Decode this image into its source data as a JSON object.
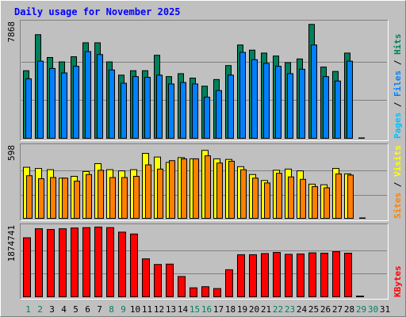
{
  "title": "Daily usage for November 2025",
  "colors": {
    "background": "#c0c0c0",
    "title": "#0000ff",
    "hits": "#00805c",
    "files": "#0080ff",
    "pages": "#00c0ff",
    "visits": "#ffff00",
    "sites": "#ff8000",
    "kbytes": "#ff0000",
    "weekday_label": "#000000",
    "weekend_label": "#00805c",
    "grid": "#808080"
  },
  "chart_data": [
    {
      "type": "bar",
      "panel": "hits-files-pages",
      "categories": [
        "1",
        "2",
        "3",
        "4",
        "5",
        "6",
        "7",
        "8",
        "9",
        "10",
        "11",
        "12",
        "13",
        "14",
        "15",
        "16",
        "17",
        "18",
        "19",
        "20",
        "21",
        "22",
        "23",
        "24",
        "25",
        "26",
        "27",
        "28",
        "29",
        "30",
        "31"
      ],
      "ymax_label": "7868",
      "ylim": [
        0,
        7868
      ],
      "right_labels": [
        {
          "text": "Pages",
          "color": "#00c0ff"
        },
        {
          "text": " / ",
          "color": "#000000"
        },
        {
          "text": "Files",
          "color": "#0080ff"
        },
        {
          "text": " / ",
          "color": "#000000"
        },
        {
          "text": "Hits",
          "color": "#00805c"
        }
      ],
      "series": [
        {
          "name": "Hits",
          "color": "#00805c",
          "values": [
            4650,
            7100,
            5550,
            5250,
            5600,
            6550,
            6550,
            5250,
            4350,
            4650,
            4650,
            5700,
            4250,
            4450,
            4150,
            3600,
            4050,
            5000,
            6400,
            6050,
            5850,
            5650,
            5200,
            5450,
            7800,
            4900,
            4600,
            5850,
            0,
            0,
            0
          ]
        },
        {
          "name": "Files",
          "color": "#0080ff",
          "values": [
            4100,
            5300,
            4800,
            4500,
            4950,
            5950,
            5750,
            4700,
            3800,
            4250,
            4200,
            4350,
            3750,
            3850,
            3750,
            2850,
            3300,
            4350,
            5900,
            5400,
            5150,
            4950,
            4450,
            4750,
            6400,
            4250,
            3950,
            5300,
            0,
            0,
            0
          ]
        },
        {
          "name": "Pages",
          "color": "#00c0ff",
          "values": [
            0,
            0,
            0,
            0,
            0,
            0,
            0,
            0,
            0,
            0,
            0,
            0,
            0,
            0,
            0,
            0,
            0,
            0,
            0,
            0,
            0,
            0,
            0,
            0,
            0,
            0,
            0,
            0,
            80,
            0,
            0
          ]
        }
      ]
    },
    {
      "type": "bar",
      "panel": "visits-sites",
      "categories": [
        "1",
        "2",
        "3",
        "4",
        "5",
        "6",
        "7",
        "8",
        "9",
        "10",
        "11",
        "12",
        "13",
        "14",
        "15",
        "16",
        "17",
        "18",
        "19",
        "20",
        "21",
        "22",
        "23",
        "24",
        "25",
        "26",
        "27",
        "28",
        "29",
        "30",
        "31"
      ],
      "ymax_label": "598",
      "ylim": [
        0,
        598
      ],
      "right_labels": [
        {
          "text": "Sites",
          "color": "#ff8000"
        },
        {
          "text": " / ",
          "color": "#000000"
        },
        {
          "text": "Visits",
          "color": "#ffff00"
        }
      ],
      "series": [
        {
          "name": "Visits",
          "color": "#ffff00",
          "values": [
            430,
            420,
            410,
            340,
            355,
            395,
            460,
            410,
            400,
            410,
            545,
            515,
            470,
            510,
            500,
            570,
            500,
            495,
            435,
            370,
            320,
            405,
            415,
            400,
            290,
            285,
            420,
            375,
            0,
            0,
            0
          ]
        },
        {
          "name": "Sites",
          "color": "#ff8000",
          "values": [
            360,
            335,
            345,
            340,
            315,
            370,
            405,
            345,
            345,
            355,
            450,
            415,
            485,
            500,
            500,
            525,
            465,
            480,
            410,
            340,
            300,
            380,
            350,
            330,
            270,
            260,
            375,
            365,
            10,
            0,
            0
          ]
        }
      ]
    },
    {
      "type": "bar",
      "panel": "kbytes",
      "categories": [
        "1",
        "2",
        "3",
        "4",
        "5",
        "6",
        "7",
        "8",
        "9",
        "10",
        "11",
        "12",
        "13",
        "14",
        "15",
        "16",
        "17",
        "18",
        "19",
        "20",
        "21",
        "22",
        "23",
        "24",
        "25",
        "26",
        "27",
        "28",
        "29",
        "30",
        "31"
      ],
      "ymax_label": "1874741",
      "ylim": [
        0,
        1874741
      ],
      "right_labels": [
        {
          "text": "KBytes",
          "color": "#ff0000"
        }
      ],
      "series": [
        {
          "name": "KBytes",
          "color": "#ff0000",
          "values": [
            1590000,
            1830000,
            1810000,
            1830000,
            1850000,
            1860000,
            1875000,
            1860000,
            1740000,
            1690000,
            1030000,
            880000,
            890000,
            560000,
            260000,
            290000,
            240000,
            740000,
            1140000,
            1140000,
            1170000,
            1200000,
            1150000,
            1160000,
            1190000,
            1180000,
            1220000,
            1180000,
            40000,
            0,
            0
          ]
        }
      ]
    }
  ],
  "x_labels": [
    {
      "text": "1",
      "weekend": true
    },
    {
      "text": "2",
      "weekend": true
    },
    {
      "text": "3",
      "weekend": false
    },
    {
      "text": "4",
      "weekend": false
    },
    {
      "text": "5",
      "weekend": false
    },
    {
      "text": "6",
      "weekend": false
    },
    {
      "text": "7",
      "weekend": false
    },
    {
      "text": "8",
      "weekend": true
    },
    {
      "text": "9",
      "weekend": true
    },
    {
      "text": "10",
      "weekend": false
    },
    {
      "text": "11",
      "weekend": false
    },
    {
      "text": "12",
      "weekend": false
    },
    {
      "text": "13",
      "weekend": false
    },
    {
      "text": "14",
      "weekend": false
    },
    {
      "text": "15",
      "weekend": true
    },
    {
      "text": "16",
      "weekend": true
    },
    {
      "text": "17",
      "weekend": false
    },
    {
      "text": "18",
      "weekend": false
    },
    {
      "text": "19",
      "weekend": false
    },
    {
      "text": "20",
      "weekend": false
    },
    {
      "text": "21",
      "weekend": false
    },
    {
      "text": "22",
      "weekend": true
    },
    {
      "text": "23",
      "weekend": true
    },
    {
      "text": "24",
      "weekend": false
    },
    {
      "text": "25",
      "weekend": false
    },
    {
      "text": "26",
      "weekend": false
    },
    {
      "text": "27",
      "weekend": false
    },
    {
      "text": "28",
      "weekend": false
    },
    {
      "text": "29",
      "weekend": true
    },
    {
      "text": "30",
      "weekend": true
    },
    {
      "text": "31",
      "weekend": false
    }
  ]
}
